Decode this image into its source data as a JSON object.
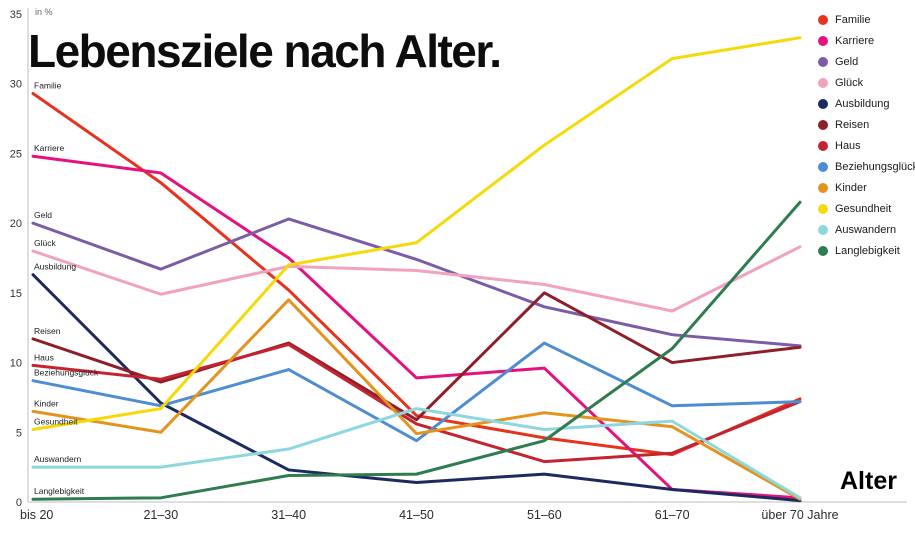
{
  "title": "Lebensziele nach Alter.",
  "axis": {
    "y_unit": "in %",
    "x_label": "Alter"
  },
  "chart_data": {
    "type": "line",
    "title": "Lebensziele nach Alter.",
    "xlabel": "Alter",
    "ylabel": "in %",
    "ylim": [
      0,
      35
    ],
    "yticks": [
      0,
      5,
      10,
      15,
      20,
      25,
      30,
      35
    ],
    "grid": false,
    "legend_position": "top-right",
    "categories": [
      "bis 20",
      "21–30",
      "31–40",
      "41–50",
      "51–60",
      "61–70",
      "über 70 Jahre"
    ],
    "series": [
      {
        "name": "Familie",
        "color": "#e6331e",
        "values": [
          29.3,
          22.9,
          15.2,
          6.2,
          4.6,
          3.4,
          7.4
        ]
      },
      {
        "name": "Karriere",
        "color": "#e4127e",
        "values": [
          24.8,
          23.6,
          17.5,
          8.9,
          9.6,
          0.9,
          0.3
        ]
      },
      {
        "name": "Geld",
        "color": "#7b5ca5",
        "values": [
          20.0,
          16.7,
          20.3,
          17.4,
          14.0,
          12.0,
          11.2
        ]
      },
      {
        "name": "Glück",
        "color": "#f0a2c0",
        "values": [
          18.0,
          14.9,
          16.9,
          16.6,
          15.6,
          13.7,
          18.3
        ]
      },
      {
        "name": "Ausbildung",
        "color": "#1c2b5f",
        "values": [
          16.3,
          7.1,
          2.3,
          1.4,
          2.0,
          0.9,
          0.1
        ]
      },
      {
        "name": "Reisen",
        "color": "#8e1f2a",
        "values": [
          11.7,
          8.6,
          11.4,
          5.9,
          15.0,
          10.0,
          11.1
        ]
      },
      {
        "name": "Haus",
        "color": "#c42330",
        "values": [
          9.8,
          8.8,
          11.3,
          5.6,
          2.9,
          3.5,
          7.2
        ]
      },
      {
        "name": "Beziehungsglück",
        "color": "#4e8ed0",
        "values": [
          8.7,
          6.9,
          9.5,
          4.4,
          11.4,
          6.9,
          7.2
        ]
      },
      {
        "name": "Kinder",
        "color": "#e2941f",
        "values": [
          6.5,
          5.0,
          14.5,
          4.9,
          6.4,
          5.4,
          0.2
        ]
      },
      {
        "name": "Gesundheit",
        "color": "#f6d908",
        "values": [
          5.2,
          6.7,
          17.0,
          18.6,
          25.6,
          31.8,
          33.3
        ]
      },
      {
        "name": "Auswandern",
        "color": "#8ed7df",
        "values": [
          2.5,
          2.5,
          3.8,
          6.7,
          5.2,
          5.8,
          0.3
        ]
      },
      {
        "name": "Langlebigkeit",
        "color": "#2e7c50",
        "values": [
          0.2,
          0.3,
          1.9,
          2.0,
          4.4,
          11.0,
          21.5
        ]
      }
    ]
  }
}
